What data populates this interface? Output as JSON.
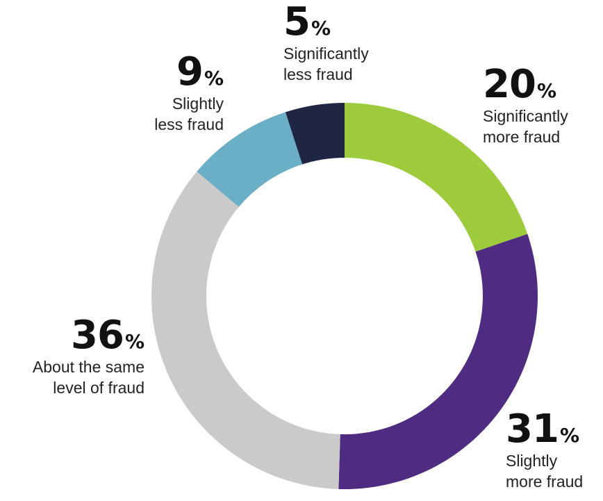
{
  "chart_data": {
    "type": "pie",
    "donut": true,
    "unit": "%",
    "slices": [
      {
        "label_line1": "Significantly",
        "label_line2": "more fraud",
        "value": 20,
        "color": "#9ECB3B"
      },
      {
        "label_line1": "Slightly",
        "label_line2": "more fraud",
        "value": 31,
        "color": "#4F2C82"
      },
      {
        "label_line1": "About the same",
        "label_line2": "level of fraud",
        "value": 36,
        "color": "#CACACA"
      },
      {
        "label_line1": "Slightly",
        "label_line2": "less fraud",
        "value": 9,
        "color": "#6BAFC7"
      },
      {
        "label_line1": "Significantly",
        "label_line2": "less fraud",
        "value": 5,
        "color": "#1E2644"
      }
    ]
  }
}
